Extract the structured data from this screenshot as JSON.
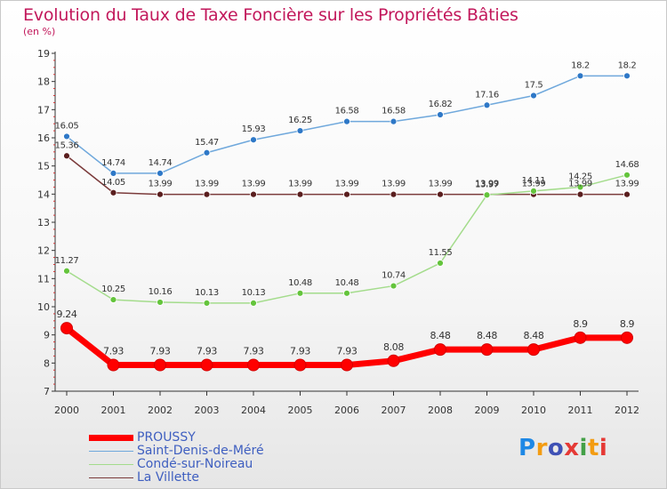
{
  "title": "Evolution du Taux de Taxe Foncière sur les Propriétés Bâties",
  "unit_label": "(en %)",
  "logo": {
    "text": "Proxiti",
    "letter_colors": [
      "#1e88e5",
      "#f39c12",
      "#3f51b5",
      "#e53935",
      "#43a047",
      "#f39c12",
      "#e53935"
    ]
  },
  "chart_data": {
    "type": "line",
    "title": "Evolution du Taux de Taxe Foncière sur les Propriétés Bâties",
    "ylabel": "(en %)",
    "xlabel": "",
    "x": [
      "2000",
      "2001",
      "2002",
      "2003",
      "2004",
      "2005",
      "2006",
      "2007",
      "2008",
      "2009",
      "2010",
      "2011",
      "2012"
    ],
    "ylim": [
      7,
      19
    ],
    "yticks": [
      "7",
      "8",
      "9",
      "10",
      "11",
      "12",
      "13",
      "14",
      "15",
      "16",
      "17",
      "18",
      "19"
    ],
    "grid": false,
    "legend": "bottom-left",
    "series": [
      {
        "name": "PROUSSY",
        "color": "#ff0000",
        "values": [
          9.24,
          7.93,
          7.93,
          7.93,
          7.93,
          7.93,
          7.93,
          8.08,
          8.48,
          8.48,
          8.48,
          8.9,
          8.9
        ],
        "labels": [
          "9.24",
          "7.93",
          "7.93",
          "7.93",
          "7.93",
          "7.93",
          "7.93",
          "8.08",
          "8.48",
          "8.48",
          "8.48",
          "8.9",
          "8.9"
        ]
      },
      {
        "name": "Saint-Denis-de-Méré",
        "color": "#6fa8dc",
        "marker_color": "#2e78c7",
        "values": [
          16.05,
          14.74,
          14.74,
          15.47,
          15.93,
          16.25,
          16.58,
          16.58,
          16.82,
          17.16,
          17.5,
          18.2,
          18.2
        ],
        "labels": [
          "16.05",
          "14.74",
          "14.74",
          "15.47",
          "15.93",
          "16.25",
          "16.58",
          "16.58",
          "16.82",
          "17.16",
          "17.5",
          "18.2",
          "18.2"
        ]
      },
      {
        "name": "Condé-sur-Noireau",
        "color": "#a4dc8c",
        "marker_color": "#64c43c",
        "values": [
          11.27,
          10.25,
          10.16,
          10.13,
          10.13,
          10.48,
          10.48,
          10.74,
          11.55,
          13.97,
          14.11,
          14.25,
          14.68
        ],
        "labels": [
          "11.27",
          "10.25",
          "10.16",
          "10.13",
          "10.13",
          "10.48",
          "10.48",
          "10.74",
          "11.55",
          "13.97",
          "14.11",
          "14.25",
          "14.68"
        ]
      },
      {
        "name": "La Villette",
        "color": "#7b3b3b",
        "marker_color": "#5a1e1e",
        "values": [
          15.36,
          14.05,
          13.99,
          13.99,
          13.99,
          13.99,
          13.99,
          13.99,
          13.99,
          13.99,
          13.99,
          13.99,
          13.99
        ],
        "labels": [
          "15.36",
          "14.05",
          "13.99",
          "13.99",
          "13.99",
          "13.99",
          "13.99",
          "13.99",
          "13.99",
          "13.99",
          "13.99",
          "13.99",
          "13.99"
        ]
      }
    ]
  }
}
